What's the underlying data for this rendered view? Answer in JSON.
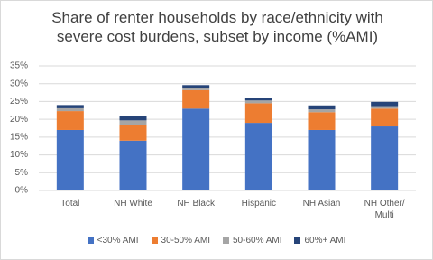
{
  "chart_data": {
    "type": "stacked_bar",
    "title": "Share of renter households by race/ethnicity with severe cost burdens, subset by income (%AMI)",
    "categories": [
      "Total",
      "NH White",
      "NH Black",
      "Hispanic",
      "NH Asian",
      "NH Other/ Multi"
    ],
    "series": [
      {
        "name": "<30% AMI",
        "color": "#4472c4",
        "values": [
          17,
          14,
          23,
          19,
          17,
          18
        ]
      },
      {
        "name": "30-50% AMI",
        "color": "#ed7d31",
        "values": [
          5.3,
          4.5,
          5.2,
          5.5,
          5,
          5
        ]
      },
      {
        "name": "50-60% AMI",
        "color": "#a5a5a5",
        "values": [
          0.8,
          1.2,
          0.7,
          0.8,
          0.8,
          0.7
        ]
      },
      {
        "name": "60%+ AMI",
        "color": "#264478",
        "values": [
          0.9,
          1.3,
          0.7,
          0.7,
          1.1,
          1.2
        ]
      }
    ],
    "ylim": [
      0,
      35
    ],
    "yticks": [
      {
        "value": 0,
        "label": "0%"
      },
      {
        "value": 5,
        "label": "5%"
      },
      {
        "value": 10,
        "label": "10%"
      },
      {
        "value": 15,
        "label": "15%"
      },
      {
        "value": 20,
        "label": "20%"
      },
      {
        "value": 25,
        "label": "25%"
      },
      {
        "value": 30,
        "label": "30%"
      },
      {
        "value": 35,
        "label": "35%"
      }
    ],
    "grid": true,
    "legend": "bottom"
  }
}
